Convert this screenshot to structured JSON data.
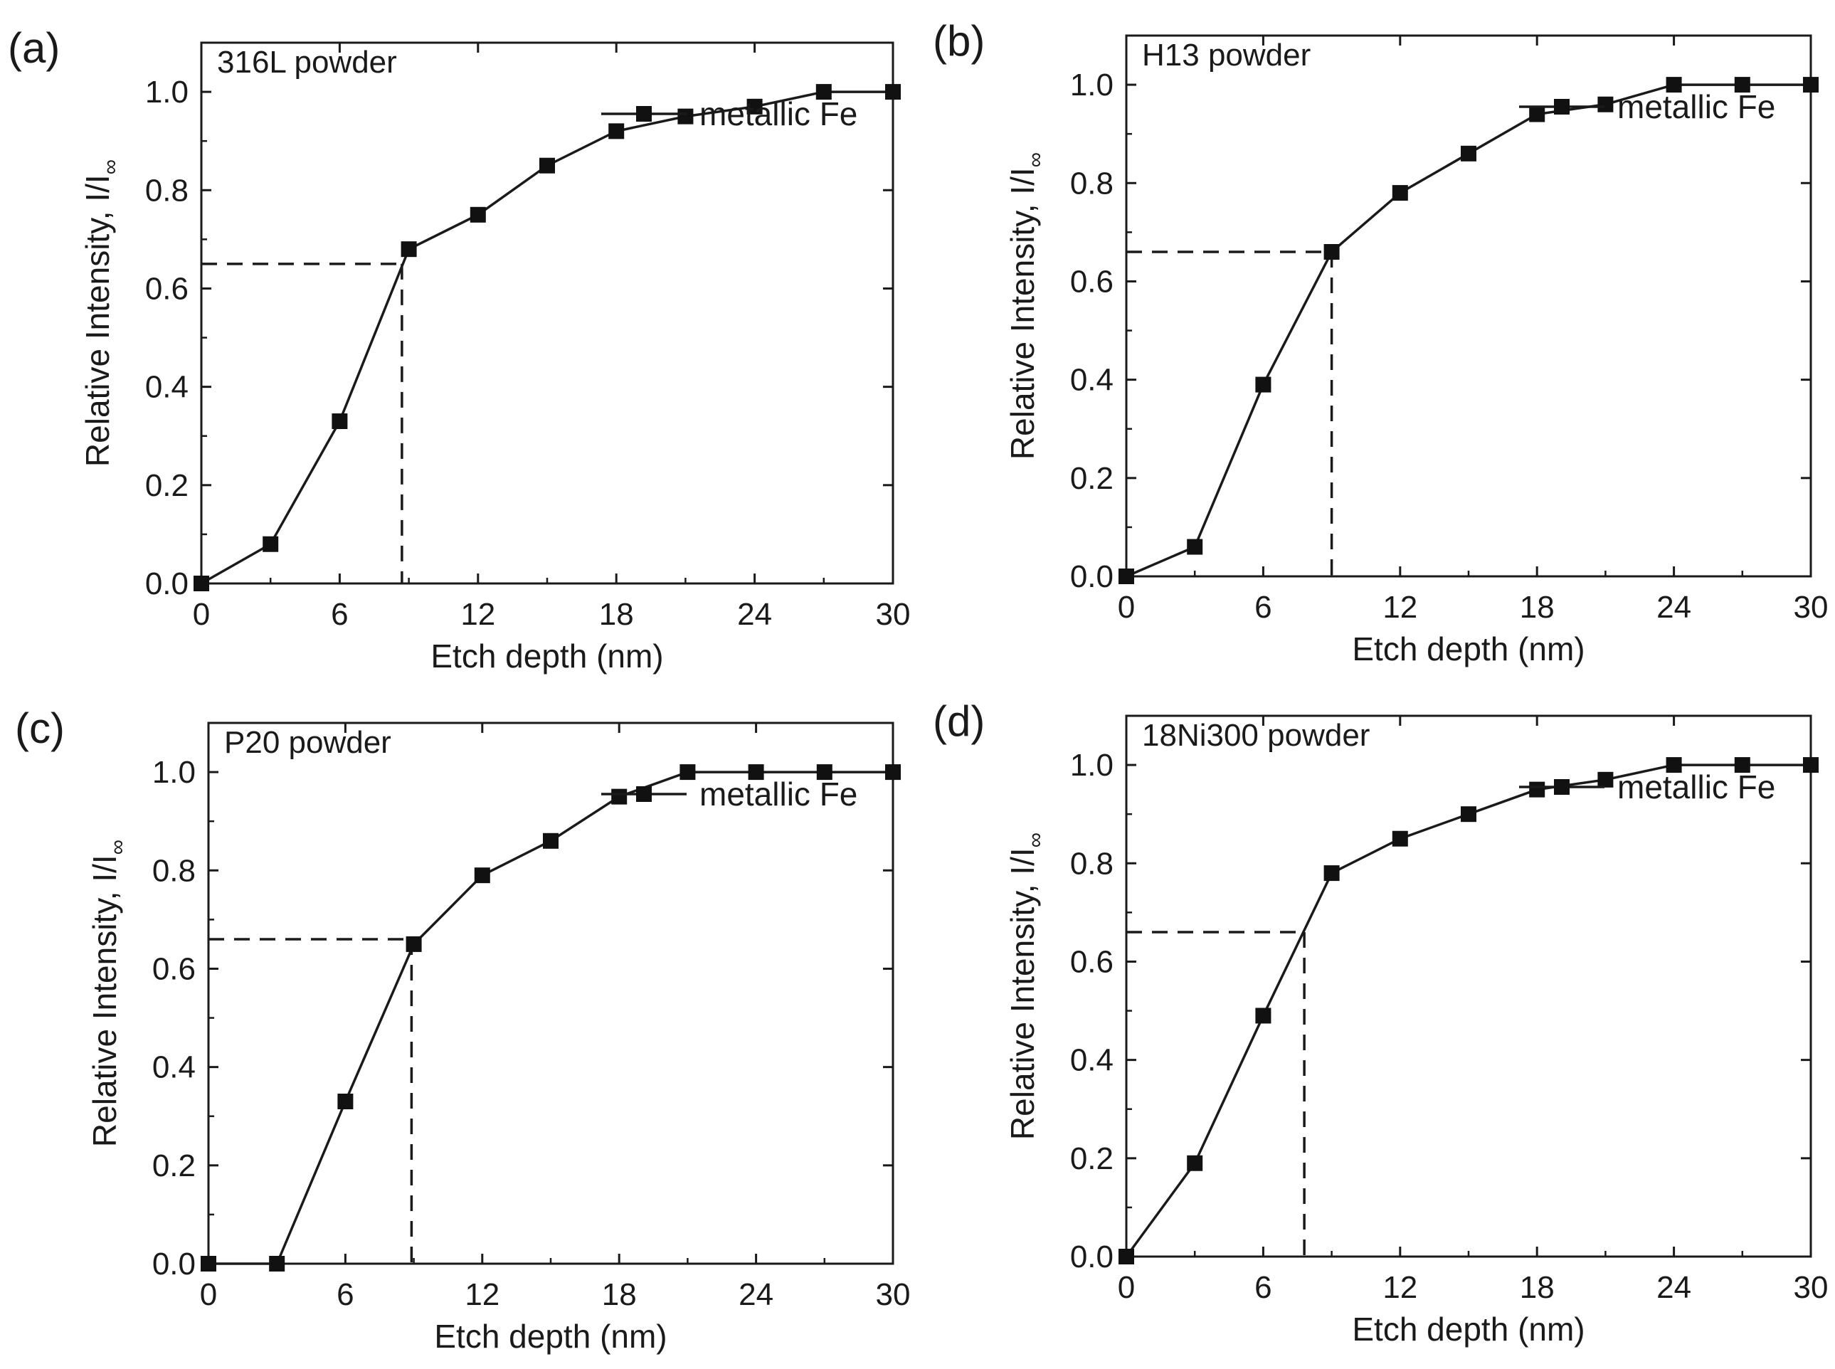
{
  "figure": {
    "title": ""
  },
  "chart_data": [
    {
      "type": "line",
      "panel": "(a)",
      "title": "316L powder",
      "xlabel": "Etch depth (nm)",
      "ylabel": "Relative Intensity, I/I",
      "ylabel_sub": "∞",
      "xlim": [
        0,
        30
      ],
      "ylim": [
        0,
        1.1
      ],
      "xticks": [
        0,
        6,
        12,
        18,
        24,
        30
      ],
      "yticks": [
        0.0,
        0.2,
        0.4,
        0.6,
        0.8,
        1.0
      ],
      "legend": "top-right",
      "series": [
        {
          "name": "metallic Fe",
          "x": [
            0,
            3,
            6,
            9,
            12,
            15,
            18,
            21,
            24,
            27,
            30
          ],
          "y": [
            0,
            0.08,
            0.33,
            0.68,
            0.75,
            0.85,
            0.92,
            0.95,
            0.97,
            1.0,
            1.0
          ]
        }
      ],
      "guide": {
        "x": 8.7,
        "y": 0.65
      }
    },
    {
      "type": "line",
      "panel": "(b)",
      "title": "H13 powder",
      "xlabel": "Etch depth (nm)",
      "ylabel": "Relative Intensity, I/I",
      "ylabel_sub": "∞",
      "xlim": [
        0,
        30
      ],
      "ylim": [
        0,
        1.1
      ],
      "xticks": [
        0,
        6,
        12,
        18,
        24,
        30
      ],
      "yticks": [
        0.0,
        0.2,
        0.4,
        0.6,
        0.8,
        1.0
      ],
      "legend": "top-right",
      "series": [
        {
          "name": "metallic Fe",
          "x": [
            0,
            3,
            6,
            9,
            12,
            15,
            18,
            21,
            24,
            27,
            30
          ],
          "y": [
            0,
            0.06,
            0.39,
            0.66,
            0.78,
            0.86,
            0.94,
            0.96,
            1.0,
            1.0,
            1.0
          ]
        }
      ],
      "guide": {
        "x": 9.0,
        "y": 0.66
      }
    },
    {
      "type": "line",
      "panel": "(c)",
      "title": "P20 powder",
      "xlabel": "Etch depth (nm)",
      "ylabel": "Relative Intensity, I/I",
      "ylabel_sub": "∞",
      "xlim": [
        0,
        30
      ],
      "ylim": [
        0,
        1.1
      ],
      "xticks": [
        0,
        6,
        12,
        18,
        24,
        30
      ],
      "yticks": [
        0.0,
        0.2,
        0.4,
        0.6,
        0.8,
        1.0
      ],
      "legend": "top-right",
      "series": [
        {
          "name": "metallic Fe",
          "x": [
            0,
            3,
            6,
            9,
            12,
            15,
            18,
            21,
            24,
            27,
            30
          ],
          "y": [
            0,
            0,
            0.33,
            0.65,
            0.79,
            0.86,
            0.95,
            1.0,
            1.0,
            1.0,
            1.0
          ]
        }
      ],
      "guide": {
        "x": 8.9,
        "y": 0.66
      }
    },
    {
      "type": "line",
      "panel": "(d)",
      "title": "18Ni300 powder",
      "xlabel": "Etch depth (nm)",
      "ylabel": "Relative Intensity, I/I",
      "ylabel_sub": "∞",
      "xlim": [
        0,
        30
      ],
      "ylim": [
        0,
        1.1
      ],
      "xticks": [
        0,
        6,
        12,
        18,
        24,
        30
      ],
      "yticks": [
        0.0,
        0.2,
        0.4,
        0.6,
        0.8,
        1.0
      ],
      "legend": "top-right",
      "series": [
        {
          "name": "metallic Fe",
          "x": [
            0,
            3,
            6,
            9,
            12,
            15,
            18,
            21,
            24,
            27,
            30
          ],
          "y": [
            0,
            0.19,
            0.49,
            0.78,
            0.85,
            0.9,
            0.95,
            0.97,
            1.0,
            1.0,
            1.0
          ]
        }
      ],
      "guide": {
        "x": 7.8,
        "y": 0.66
      }
    }
  ]
}
